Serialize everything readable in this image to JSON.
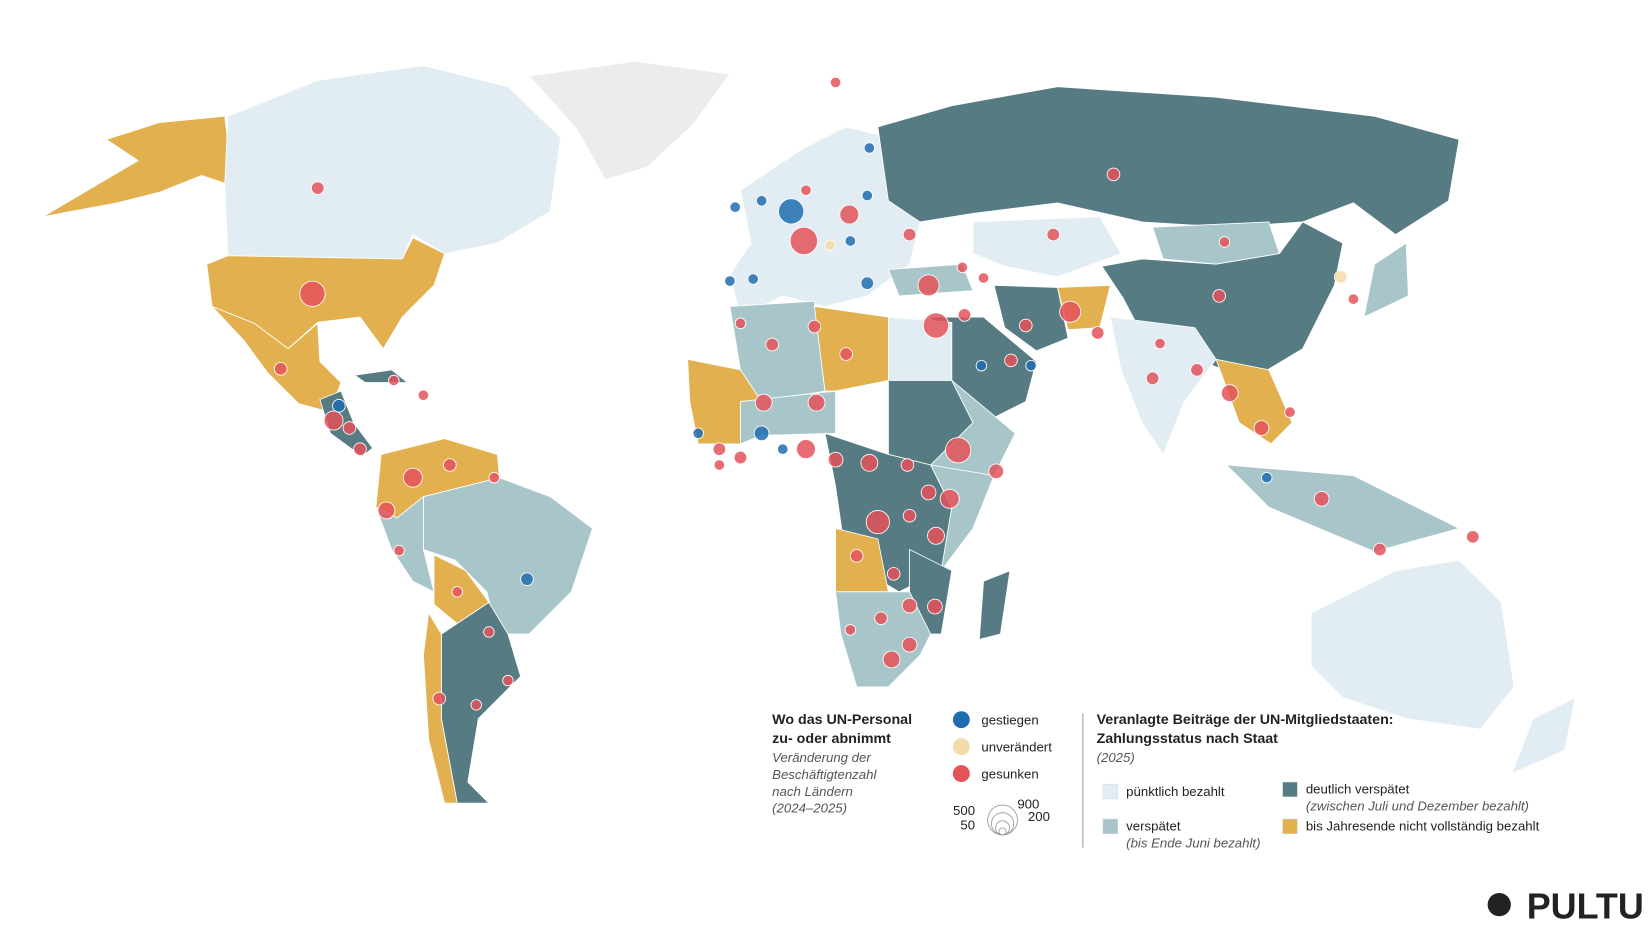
{
  "staff_legend": {
    "title_lines": [
      "Wo das UN-Personal",
      "zu- oder abnimmt"
    ],
    "subtitle_lines": [
      "Veränderung der",
      "Beschäftigtenzahl",
      "nach Ländern",
      "(2024–2025)"
    ],
    "items": [
      {
        "label": "gestiegen",
        "color": "#1f6db0"
      },
      {
        "label": "unverändert",
        "color": "#f2dcaa"
      },
      {
        "label": "gesunken",
        "color": "#e4525a"
      }
    ],
    "size_labels": [
      500,
      900,
      50,
      200
    ]
  },
  "payment_legend": {
    "title_lines": [
      "Veranlagte Beiträge der UN-Mitgliedstaaten:",
      "Zahlungsstatus nach Staat"
    ],
    "year": "(2025)",
    "items": [
      {
        "label": "pünktlich bezahlt",
        "color": "#e1edf3"
      },
      {
        "label": "verspätet",
        "note": "(bis Ende Juni bezahlt)",
        "color": "#a8c6c9"
      },
      {
        "label": "deutlich verspätet",
        "note": "(zwischen Juli und Dezember bezahlt)",
        "color": "#567b82"
      },
      {
        "label": "bis Jahresende nicht vollständig bezahlt",
        "color": "#e2b04e"
      }
    ]
  },
  "logo": "PULTU"
}
